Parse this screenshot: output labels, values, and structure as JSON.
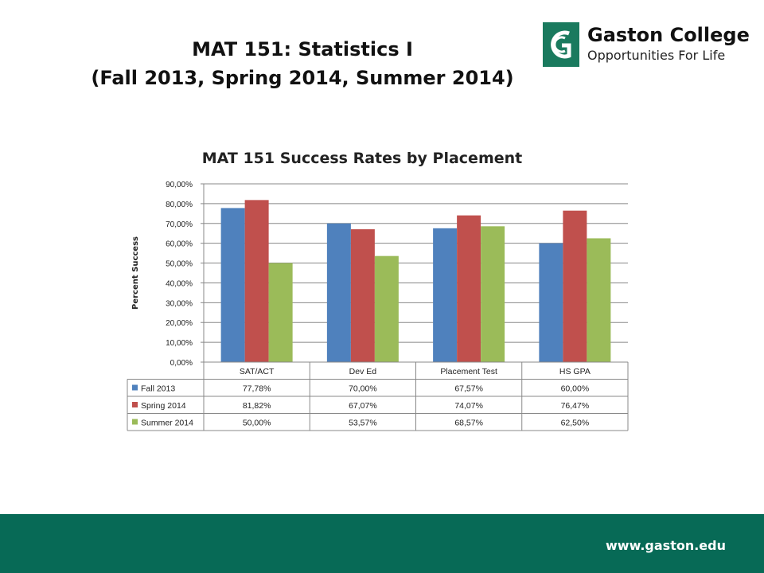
{
  "slide": {
    "title_line1": "MAT 151:  Statistics I",
    "title_line2": "(Fall 2013, Spring 2014, Summer 2014)"
  },
  "logo": {
    "name": "Gaston College",
    "tagline": "Opportunities For Life",
    "icon": "gaston-college-logo-icon",
    "color": "#1a7a5e"
  },
  "footer": {
    "url": "www.gaston.edu",
    "color": "#076a56"
  },
  "chart_data": {
    "type": "bar",
    "title": "MAT 151 Success Rates by Placement",
    "ylabel": "Percent Success",
    "ylim": [
      0,
      90
    ],
    "yticks": [
      "0,00%",
      "10,00%",
      "20,00%",
      "30,00%",
      "40,00%",
      "50,00%",
      "60,00%",
      "70,00%",
      "80,00%",
      "90,00%"
    ],
    "categories": [
      "SAT/ACT",
      "Dev Ed",
      "Placement Test",
      "HS GPA"
    ],
    "grid": true,
    "legend": "data-table",
    "series": [
      {
        "name": "Fall 2013",
        "color": "#4f81bd",
        "values": [
          77.78,
          70.0,
          67.57,
          60.0
        ],
        "labels": [
          "77,78%",
          "70,00%",
          "67,57%",
          "60,00%"
        ]
      },
      {
        "name": "Spring 2014",
        "color": "#c0504d",
        "values": [
          81.82,
          67.07,
          74.07,
          76.47
        ],
        "labels": [
          "81,82%",
          "67,07%",
          "74,07%",
          "76,47%"
        ]
      },
      {
        "name": "Summer 2014",
        "color": "#9bbb59",
        "values": [
          50.0,
          53.57,
          68.57,
          62.5
        ],
        "labels": [
          "50,00%",
          "53,57%",
          "68,57%",
          "62,50%"
        ]
      }
    ]
  }
}
